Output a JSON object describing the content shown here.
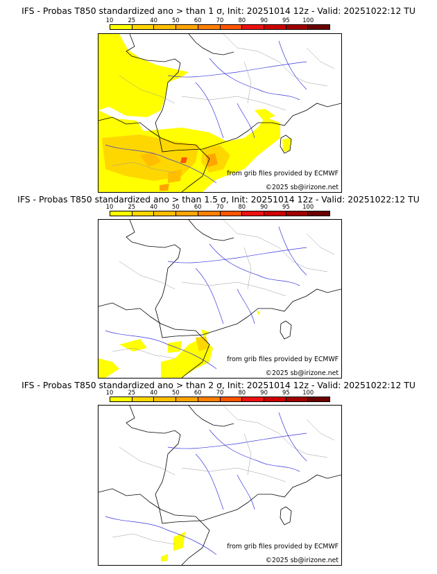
{
  "colorbar": {
    "ticks": [
      "10",
      "25",
      "40",
      "50",
      "60",
      "70",
      "80",
      "90",
      "95",
      "100"
    ],
    "colors": [
      "#ffff00",
      "#ffd700",
      "#ffbf00",
      "#ffa500",
      "#ff8000",
      "#ff5500",
      "#ee1111",
      "#cc0000",
      "#a00000",
      "#6b0000"
    ]
  },
  "overlay": {
    "ecmwf_credit": "from grib files provided by ECMWF",
    "copyright": "©2025 sb@irizone.net"
  },
  "panels": [
    {
      "title": "IFS - Probas T850  standardized ano > than 1 σ, Init: 20251014 12z - Valid: 20251022:12 TU"
    },
    {
      "title": "IFS - Probas T850  standardized ano > than 1.5 σ, Init: 20251014 12z - Valid: 20251022:12 TU"
    },
    {
      "title": "IFS - Probas T850  standardized ano > than 2 σ, Init: 20251014 12z - Valid: 20251022:12 TU"
    }
  ]
}
